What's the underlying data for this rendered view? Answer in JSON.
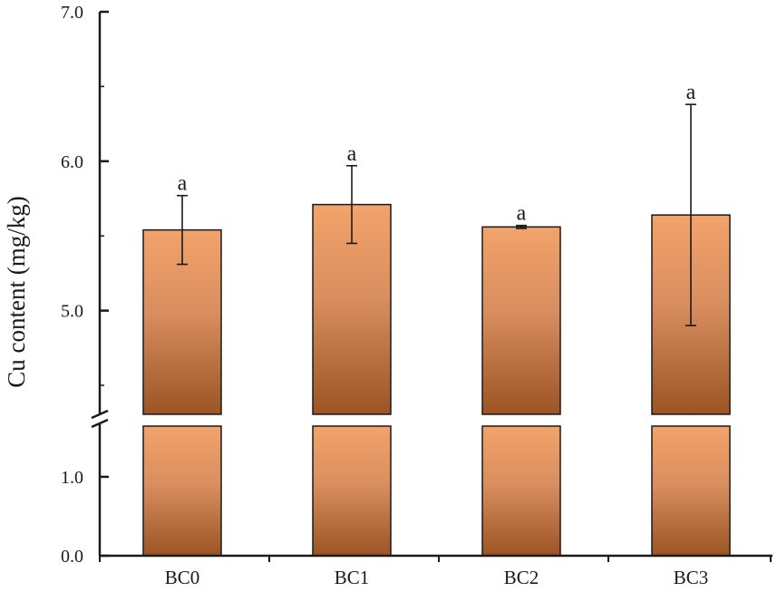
{
  "chart_data": {
    "type": "bar",
    "title": "",
    "xlabel": "",
    "ylabel": "Cu content (mg/kg)",
    "categories": [
      "BC0",
      "BC1",
      "BC2",
      "BC3"
    ],
    "values": [
      5.54,
      5.71,
      5.56,
      5.64
    ],
    "errors": [
      0.23,
      0.26,
      0.01,
      0.74
    ],
    "significance": [
      "a",
      "a",
      "a",
      "a"
    ],
    "axis_break": true,
    "lower_segment": {
      "ylim": [
        0.0,
        1.7
      ],
      "ticks": [
        "0.0",
        "1.0"
      ],
      "tick_values": [
        0.0,
        1.0
      ]
    },
    "upper_segment": {
      "ylim": [
        4.3,
        7.0
      ],
      "ticks": [
        "5.0",
        "6.0",
        "7.0"
      ],
      "tick_values": [
        5.0,
        6.0,
        7.0
      ]
    },
    "grid": false,
    "legend": "none",
    "colors": {
      "bar_top": "#f3a36b",
      "bar_bottom": "#9c5424",
      "axis": "#1a1a1a"
    }
  }
}
